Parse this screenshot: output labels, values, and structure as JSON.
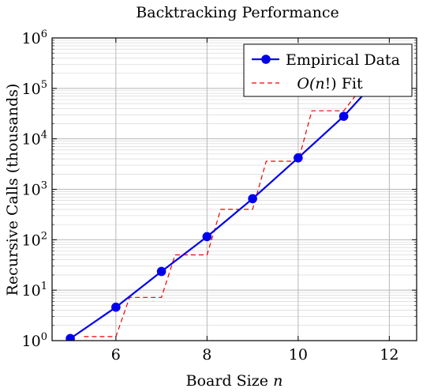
{
  "chart_data": {
    "type": "line",
    "title": "Backtracking Performance",
    "xlabel_text": "Board Size",
    "xlabel_var": "n",
    "ylabel": "Recursive Calls (thousands)",
    "xlim": [
      4.6,
      12.6
    ],
    "ylim": [
      1,
      1000000
    ],
    "y_scale": "log",
    "grid": true,
    "legend_position": "top-right",
    "x_ticks": [
      6,
      8,
      10,
      12
    ],
    "y_ticks": [
      {
        "value": 1,
        "base": "10",
        "exp": "0"
      },
      {
        "value": 10,
        "base": "10",
        "exp": "1"
      },
      {
        "value": 100,
        "base": "10",
        "exp": "2"
      },
      {
        "value": 1000,
        "base": "10",
        "exp": "3"
      },
      {
        "value": 10000,
        "base": "10",
        "exp": "4"
      },
      {
        "value": 100000,
        "base": "10",
        "exp": "5"
      },
      {
        "value": 1000000,
        "base": "10",
        "exp": "6"
      }
    ],
    "series": [
      {
        "name": "Empirical Data",
        "color": "#0000ee",
        "style": "solid-with-markers",
        "x": [
          5,
          6,
          7,
          8,
          9,
          10,
          11,
          11.6
        ],
        "y": [
          1.1,
          4.6,
          23.5,
          115,
          650,
          4200,
          28000,
          110000
        ],
        "marker_count": 7
      },
      {
        "name": "O(n!) Fit",
        "color": "#ee0000",
        "style": "dashed-steps",
        "x": [
          5.3,
          6,
          6.3,
          7,
          7.3,
          8,
          8.3,
          9,
          9.3,
          10,
          10.3,
          11,
          11.3
        ],
        "y": [
          1.2,
          1.2,
          7.2,
          7.2,
          50,
          50,
          400,
          400,
          3600,
          3600,
          36000,
          36000,
          80000
        ]
      }
    ],
    "legend": [
      {
        "label": "Empirical Data",
        "style": "solid-with-markers",
        "color": "#0000ee"
      },
      {
        "label_pre": "O(",
        "label_var": "n",
        "label_post": "!) Fit",
        "style": "dashed",
        "color": "#ee0000"
      }
    ]
  }
}
